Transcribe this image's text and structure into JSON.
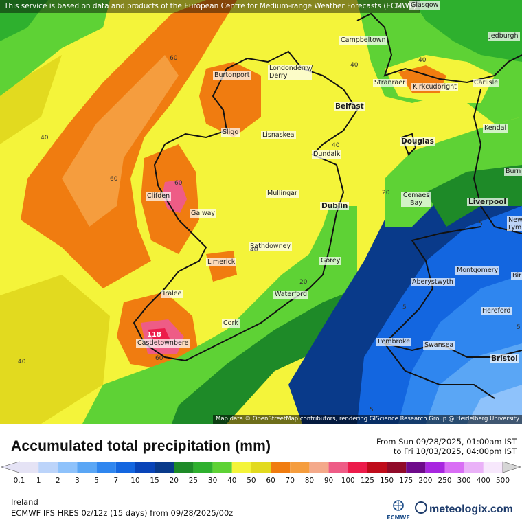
{
  "map": {
    "top_attribution": "This service is based on data and products of the European Centre for Medium-range Weather Forecasts (ECMWF)",
    "bottom_attribution": "Map data © OpenStreetMap contributors, rendering GIScience Research Group @ Heidelberg University",
    "cities": [
      {
        "id": "glasgow",
        "label": "Glasgow"
      },
      {
        "id": "campbeltown",
        "label": "Campbeltown"
      },
      {
        "id": "jedburgh",
        "label": "Jedburgh"
      },
      {
        "id": "burtonport",
        "label": "Burtonport"
      },
      {
        "id": "londonderry",
        "label": "Londonderry/ Derry"
      },
      {
        "id": "stranraer",
        "label": "Stranraer"
      },
      {
        "id": "kirkcudbright",
        "label": "Kirkcudbright"
      },
      {
        "id": "carlisle",
        "label": "Carlisle"
      },
      {
        "id": "belfast",
        "label": "Belfast"
      },
      {
        "id": "sligo",
        "label": "Sligo"
      },
      {
        "id": "lisnaskea",
        "label": "Lisnaskea"
      },
      {
        "id": "kendal",
        "label": "Kendal"
      },
      {
        "id": "douglas",
        "label": "Douglas"
      },
      {
        "id": "dundalk",
        "label": "Dundalk"
      },
      {
        "id": "burn",
        "label": "Burn"
      },
      {
        "id": "clifden",
        "label": "Clifden"
      },
      {
        "id": "mullingar",
        "label": "Mullingar"
      },
      {
        "id": "cemaes",
        "label": "Cemaes Bay"
      },
      {
        "id": "liverpool",
        "label": "Liverpool"
      },
      {
        "id": "galway",
        "label": "Galway"
      },
      {
        "id": "dublin",
        "label": "Dublin"
      },
      {
        "id": "newcastle",
        "label": "Newca Lym"
      },
      {
        "id": "rathdowney",
        "label": "Rathdowney"
      },
      {
        "id": "limerick",
        "label": "Limerick"
      },
      {
        "id": "gorey",
        "label": "Gorey"
      },
      {
        "id": "montgomery",
        "label": "Montgomery"
      },
      {
        "id": "aberystwyth",
        "label": "Aberystwyth"
      },
      {
        "id": "tralee",
        "label": "Tralee"
      },
      {
        "id": "waterford",
        "label": "Waterford"
      },
      {
        "id": "hereford",
        "label": "Hereford"
      },
      {
        "id": "cork",
        "label": "Cork"
      },
      {
        "id": "castletownbere",
        "label": "Castletownbere"
      },
      {
        "id": "pembroke",
        "label": "Pembroke"
      },
      {
        "id": "swansea",
        "label": "Swansea"
      },
      {
        "id": "bristol",
        "label": "Bristol"
      },
      {
        "id": "bir",
        "label": "Bir"
      }
    ],
    "contour_labels": [
      "40",
      "40",
      "60",
      "40",
      "60",
      "40",
      "40",
      "20",
      "60",
      "20",
      "5",
      "5",
      "60",
      "40",
      "5",
      "5",
      "118"
    ]
  },
  "title": "Accumulated total precipitation (mm)",
  "period": {
    "from": "From Sun 09/28/2025, 01:00am IST",
    "to": "to Fri 10/03/2025, 04:00pm IST"
  },
  "legend": {
    "ticks": [
      "0.1",
      "1",
      "2",
      "3",
      "5",
      "7",
      "10",
      "15",
      "20",
      "25",
      "30",
      "40",
      "50",
      "60",
      "70",
      "80",
      "90",
      "100",
      "125",
      "150",
      "175",
      "200",
      "250",
      "300",
      "400",
      "500"
    ],
    "colors": [
      "#e5e3f5",
      "#bcd4fa",
      "#8ec2fb",
      "#5aa6f5",
      "#2f86ef",
      "#1366e0",
      "#0844b8",
      "#093a8a",
      "#1e8a28",
      "#2eb02e",
      "#5ed235",
      "#f4f43a",
      "#e2da1f",
      "#f07c10",
      "#f59d3e",
      "#f4a98a",
      "#ee5c86",
      "#ec1b4a",
      "#bf0b1a",
      "#900a28",
      "#6e0a8a",
      "#a826e0",
      "#d96ef5",
      "#eab2f8",
      "#f7e8fc",
      "#d6d6d6"
    ]
  },
  "region": "Ireland",
  "model": "ECMWF IFS HRES 0z/12z (15 days) from  09/28/2025/00z",
  "ecmwf_logo": "ECMWF",
  "brand": "meteologix.com"
}
